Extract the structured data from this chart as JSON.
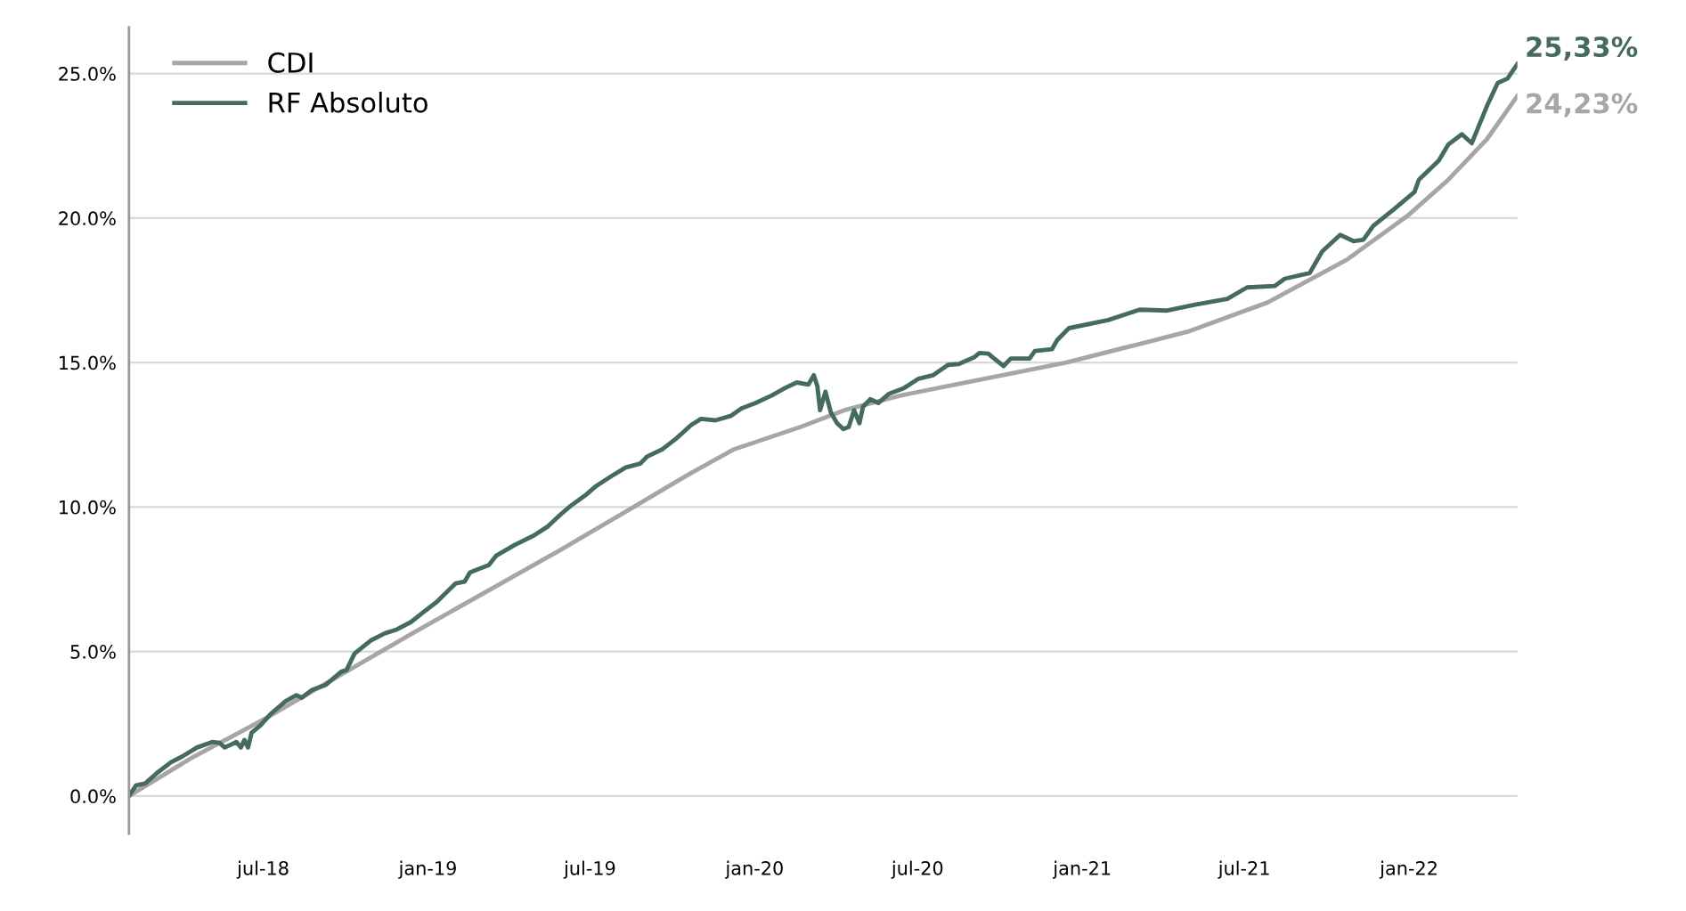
{
  "chart_data": {
    "type": "line",
    "legend": "top left",
    "grid": "y",
    "line_style": "solid",
    "marker": "none",
    "xlim": [
      "2018-02-01",
      "2022-05-02"
    ],
    "ylim": [
      -1.3,
      26.6
    ],
    "xticks": [
      {
        "value": "2018-07-01",
        "label": "jul-18"
      },
      {
        "value": "2019-01-01",
        "label": "jan-19"
      },
      {
        "value": "2019-07-01",
        "label": "jul-19"
      },
      {
        "value": "2020-01-01",
        "label": "jan-20"
      },
      {
        "value": "2020-07-01",
        "label": "jul-20"
      },
      {
        "value": "2021-01-01",
        "label": "jan-21"
      },
      {
        "value": "2021-07-01",
        "label": "jul-21"
      },
      {
        "value": "2022-01-01",
        "label": "jan-22"
      }
    ],
    "yticks": [
      {
        "value": 0,
        "label": "0.0%"
      },
      {
        "value": 5,
        "label": "5.0%"
      },
      {
        "value": 10,
        "label": "10.0%"
      },
      {
        "value": 15,
        "label": "15.0%"
      },
      {
        "value": 20,
        "label": "20.0%"
      },
      {
        "value": 25,
        "label": "25.0%"
      }
    ],
    "series": [
      {
        "name": "CDI",
        "color": "#a6a6a6",
        "x": [
          "2018-02-01",
          "2018-04-11",
          "2018-07-01",
          "2018-12-13",
          "2019-05-28",
          "2019-08-09",
          "2019-10-22",
          "2019-12-09",
          "2020-02-21",
          "2020-04-10",
          "2020-06-12",
          "2020-08-12",
          "2020-12-14",
          "2021-04-28",
          "2021-07-27",
          "2021-10-24",
          "2021-12-30",
          "2022-02-13",
          "2022-03-29",
          "2022-05-02"
        ],
        "values": [
          0,
          1.3,
          2.64,
          5.6,
          8.5,
          9.82,
          11.18,
          12.0,
          12.77,
          13.35,
          13.86,
          14.24,
          15.0,
          16.06,
          17.08,
          18.57,
          20.07,
          21.3,
          22.73,
          24.23
        ]
      },
      {
        "name": "RF Absoluto",
        "color": "#456b5a",
        "x": [
          "2018-02-02",
          "2018-02-09",
          "2018-02-19",
          "2018-03-04",
          "2018-03-20",
          "2018-04-01",
          "2018-04-18",
          "2018-05-05",
          "2018-05-13",
          "2018-05-19",
          "2018-06-01",
          "2018-06-06",
          "2018-06-10",
          "2018-06-14",
          "2018-06-18",
          "2018-06-28",
          "2018-07-09",
          "2018-07-26",
          "2018-08-07",
          "2018-08-13",
          "2018-08-24",
          "2018-09-09",
          "2018-09-26",
          "2018-10-02",
          "2018-10-11",
          "2018-10-29",
          "2018-11-14",
          "2018-11-27",
          "2018-12-13",
          "2018-12-26",
          "2019-01-11",
          "2019-02-01",
          "2019-02-11",
          "2019-02-17",
          "2019-03-10",
          "2019-03-18",
          "2019-04-08",
          "2019-04-29",
          "2019-05-15",
          "2019-05-28",
          "2019-06-09",
          "2019-06-26",
          "2019-07-08",
          "2019-07-24",
          "2019-08-10",
          "2019-08-26",
          "2019-09-03",
          "2019-09-20",
          "2019-10-06",
          "2019-10-22",
          "2019-11-02",
          "2019-11-18",
          "2019-12-05",
          "2019-12-17",
          "2020-01-02",
          "2020-01-20",
          "2020-02-04",
          "2020-02-17",
          "2020-03-01",
          "2020-03-07",
          "2020-03-11",
          "2020-03-14",
          "2020-03-20",
          "2020-03-26",
          "2020-04-02",
          "2020-04-09",
          "2020-04-15",
          "2020-04-21",
          "2020-04-27",
          "2020-05-01",
          "2020-05-09",
          "2020-05-18",
          "2020-05-30",
          "2020-06-16",
          "2020-07-02",
          "2020-07-18",
          "2020-08-04",
          "2020-08-16",
          "2020-09-02",
          "2020-09-08",
          "2020-09-18",
          "2020-09-22",
          "2020-10-05",
          "2020-10-13",
          "2020-11-03",
          "2020-11-09",
          "2020-11-28",
          "2020-12-04",
          "2020-12-17",
          "2021-01-30",
          "2021-03-06",
          "2021-04-06",
          "2021-05-07",
          "2021-06-12",
          "2021-07-04",
          "2021-08-04",
          "2021-08-15",
          "2021-09-12",
          "2021-09-26",
          "2021-10-16",
          "2021-10-31",
          "2021-11-11",
          "2021-11-22",
          "2021-12-14",
          "2022-01-07",
          "2022-01-12",
          "2022-02-03",
          "2022-02-14",
          "2022-03-01",
          "2022-03-12",
          "2022-03-30",
          "2022-04-10",
          "2022-04-21",
          "2022-05-02"
        ],
        "values": [
          0.05,
          0.37,
          0.43,
          0.79,
          1.17,
          1.36,
          1.68,
          1.87,
          1.84,
          1.68,
          1.87,
          1.68,
          1.94,
          1.68,
          2.19,
          2.45,
          2.83,
          3.28,
          3.49,
          3.4,
          3.66,
          3.85,
          4.3,
          4.36,
          4.93,
          5.38,
          5.63,
          5.76,
          6.02,
          6.34,
          6.72,
          7.36,
          7.42,
          7.74,
          7.99,
          8.31,
          8.69,
          9.01,
          9.33,
          9.71,
          10.03,
          10.41,
          10.73,
          11.05,
          11.37,
          11.5,
          11.75,
          12.0,
          12.39,
          12.84,
          13.05,
          13.0,
          13.15,
          13.41,
          13.6,
          13.86,
          14.12,
          14.31,
          14.24,
          14.56,
          14.18,
          13.35,
          13.99,
          13.28,
          12.9,
          12.7,
          12.77,
          13.35,
          12.9,
          13.47,
          13.73,
          13.6,
          13.92,
          14.12,
          14.44,
          14.56,
          14.92,
          14.95,
          15.18,
          15.33,
          15.31,
          15.2,
          14.88,
          15.14,
          15.14,
          15.4,
          15.46,
          15.78,
          16.19,
          16.47,
          16.83,
          16.8,
          17.0,
          17.2,
          17.6,
          17.65,
          17.9,
          18.1,
          18.85,
          19.42,
          19.2,
          19.25,
          19.73,
          20.28,
          20.9,
          21.33,
          21.98,
          22.55,
          22.9,
          22.59,
          23.95,
          24.67,
          24.83,
          25.33
        ]
      }
    ],
    "annotations": [
      {
        "text": "25,33%",
        "x": "2022-05-02",
        "y": 25.33
      },
      {
        "text": "24,23%",
        "x": "2022-05-02",
        "y": 24.23
      }
    ]
  }
}
